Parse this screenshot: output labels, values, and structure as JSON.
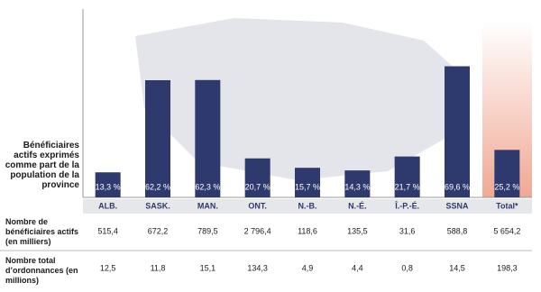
{
  "chart_data": {
    "type": "bar",
    "y_label": "Bénéficiaires actifs exprimés comme part de la population de la province",
    "categories": [
      "ALB.",
      "SASK.",
      "MAN.",
      "ONT.",
      "N.-B.",
      "N.-É.",
      "Î.-P.-É.",
      "SSNA",
      "Total*"
    ],
    "values": [
      13.3,
      62.2,
      62.3,
      20.7,
      15.7,
      14.3,
      21.7,
      69.6,
      25.2
    ],
    "value_labels": [
      "13,3 %",
      "62,2 %",
      "62,3 %",
      "20,7 %",
      "15,7 %",
      "14,3 %",
      "21,7 %",
      "69,6 %",
      "25,2 %"
    ],
    "color": "#2e3a6e",
    "ylim": [
      0,
      100
    ]
  },
  "table": {
    "rows": [
      {
        "label": "Nombre de bénéficiaires actifs (en milliers)",
        "cells": [
          "515,4",
          "672,2",
          "789,5",
          "2 796,4",
          "118,6",
          "135,5",
          "31,6",
          "588,8",
          "5 654,2"
        ]
      },
      {
        "label": "Nombre total d’ordonnances (en millions)",
        "cells": [
          "12,5",
          "11,8",
          "15,1",
          "134,3",
          "4,9",
          "4,4",
          "0,8",
          "14,5",
          "198,3"
        ]
      }
    ]
  }
}
